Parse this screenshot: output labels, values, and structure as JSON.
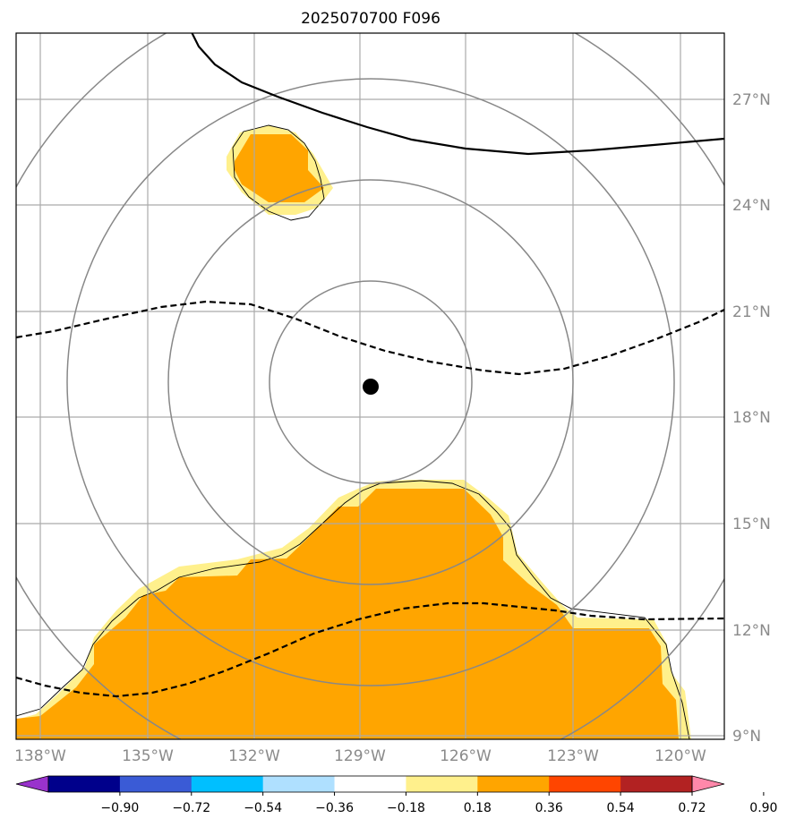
{
  "title": "2025070700 F096",
  "map": {
    "lon_ticks": [
      "138°W",
      "135°W",
      "132°W",
      "129°W",
      "126°W",
      "123°W",
      "120°W"
    ],
    "lat_ticks": [
      "27°N",
      "24°N",
      "21°N",
      "18°N",
      "15°N",
      "12°N",
      "9°N"
    ],
    "center_marker": {
      "lon": -128.7,
      "lat": 18.9,
      "icon": "storm-center-dot"
    },
    "fill_colors": {
      "low": "#fff08c",
      "mid": "#ffa500"
    }
  },
  "colorbar": {
    "colors": [
      "#9932cc",
      "#00008b",
      "#3a5bd6",
      "#00bfff",
      "#afe0ff",
      "#ffffff",
      "#fff08c",
      "#ffa500",
      "#ff4500",
      "#b22222",
      "#ff88aa"
    ],
    "labels": [
      "−0.90",
      "−0.72",
      "−0.54",
      "−0.36",
      "−0.18",
      "0.18",
      "0.36",
      "0.54",
      "0.72",
      "0.90"
    ]
  }
}
